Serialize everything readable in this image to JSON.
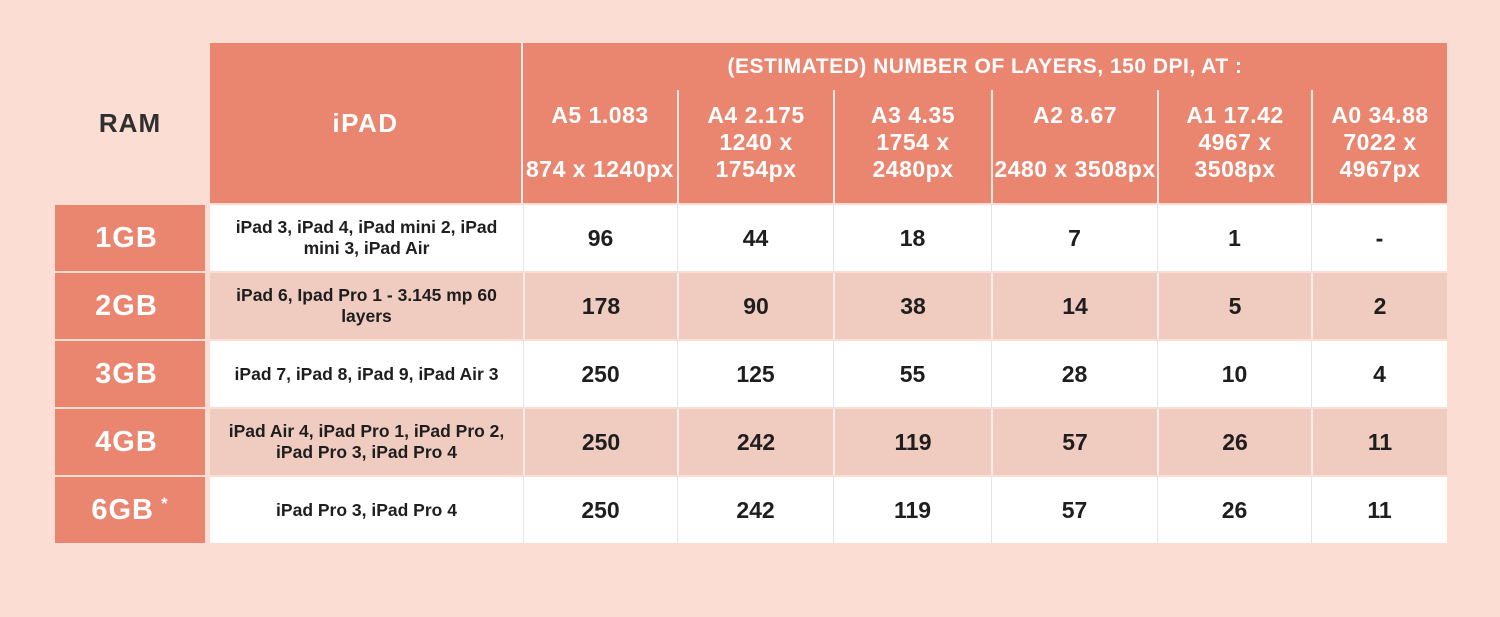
{
  "colors": {
    "page_background": "#fcddd3",
    "header_salmon": "#ea8670",
    "row_pink": "#f0cbbf",
    "row_white": "#ffffff",
    "dark_text": "#262626",
    "light_text": "#ffffff"
  },
  "chart_data": {
    "type": "table",
    "title": "(ESTIMATED) NUMBER OF LAYERS, 150 DPI, AT :",
    "row_header_label": "RAM",
    "device_column_label": "iPAD",
    "size_columns": [
      {
        "label": "A5 1.083",
        "pixels": "874 x 1240px"
      },
      {
        "label": "A4 2.175",
        "pixels": "1240 x 1754px"
      },
      {
        "label": "A3 4.35",
        "pixels": "1754 x 2480px"
      },
      {
        "label": "A2 8.67",
        "pixels": "2480 x 3508px"
      },
      {
        "label": "A1 17.42",
        "pixels": "4967 x 3508px"
      },
      {
        "label": "A0 34.88",
        "pixels": "7022 x 4967px"
      }
    ],
    "rows": [
      {
        "ram": "1GB",
        "note": "",
        "devices": "iPad 3, iPad 4, iPad mini 2, iPad mini 3, iPad Air",
        "values": [
          "96",
          "44",
          "18",
          "7",
          "1",
          "-"
        ]
      },
      {
        "ram": "2GB",
        "note": "",
        "devices": "iPad 6, Ipad Pro 1 - 3.145 mp 60 layers",
        "values": [
          "178",
          "90",
          "38",
          "14",
          "5",
          "2"
        ]
      },
      {
        "ram": "3GB",
        "note": "",
        "devices": "iPad 7, iPad 8, iPad 9, iPad Air 3",
        "values": [
          "250",
          "125",
          "55",
          "28",
          "10",
          "4"
        ]
      },
      {
        "ram": "4GB",
        "note": "",
        "devices": "iPad Air 4, iPad Pro 1, iPad Pro 2, iPad Pro 3, iPad Pro 4",
        "values": [
          "250",
          "242",
          "119",
          "57",
          "26",
          "11"
        ]
      },
      {
        "ram": "6GB",
        "note": "*",
        "devices": "iPad Pro 3, iPad Pro 4",
        "values": [
          "250",
          "242",
          "119",
          "57",
          "26",
          "11"
        ]
      }
    ]
  }
}
